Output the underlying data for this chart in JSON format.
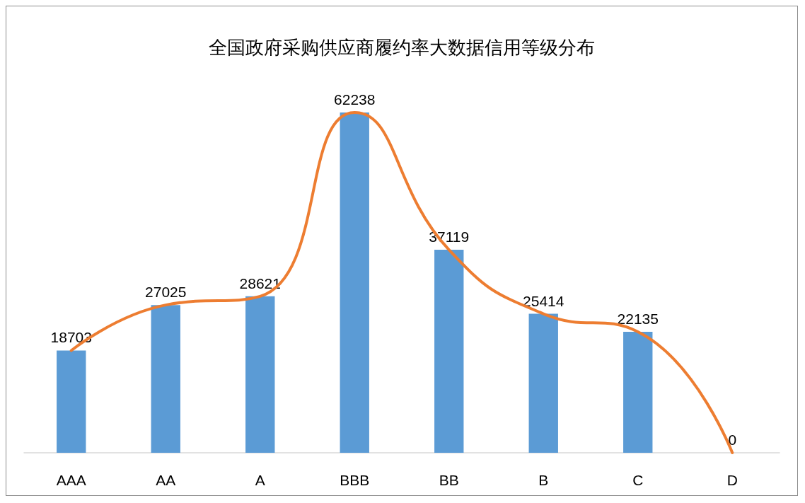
{
  "chart_data": {
    "type": "bar",
    "title": "全国政府采购供应商履约率大数据信用等级分布",
    "categories": [
      "AAA",
      "AA",
      "A",
      "BBB",
      "BB",
      "B",
      "C",
      "D"
    ],
    "series": [
      {
        "color": "#5b9bd5",
        "values": [
          18703,
          27025,
          28621,
          62238,
          37119,
          25414,
          22135,
          0
        ],
        "value_labels": [
          "18703",
          "27025",
          "28621",
          "62238",
          "37119",
          "25414",
          "22135",
          "0"
        ]
      },
      {
        "type": "line",
        "color": "#ed7d31",
        "values": [
          18703,
          27025,
          28621,
          62238,
          37119,
          25414,
          22135,
          0
        ]
      }
    ],
    "marker": "none",
    "tick_labels": "x",
    "grid": false
  }
}
